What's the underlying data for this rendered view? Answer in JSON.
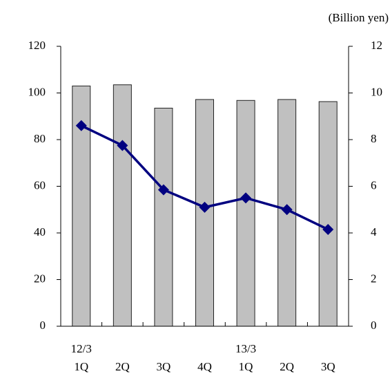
{
  "chart_data": {
    "type": "bar-line",
    "y2_label": "(Billion yen)",
    "categories": [
      "1Q",
      "2Q",
      "3Q",
      "4Q",
      "1Q",
      "2Q",
      "3Q"
    ],
    "category_groups": [
      "12/3",
      null,
      null,
      null,
      "13/3",
      null,
      null
    ],
    "series": [
      {
        "type": "bar",
        "color": "#c0c0c0",
        "values": [
          103,
          103.5,
          93.5,
          97.2,
          96.8,
          97.2,
          96.3
        ]
      },
      {
        "type": "line",
        "axis": "y2",
        "color": "#000080",
        "values": [
          8.6,
          7.75,
          5.85,
          5.1,
          5.5,
          5.0,
          4.15
        ]
      }
    ],
    "ylim": [
      0,
      120
    ],
    "yticks": [
      0,
      20,
      40,
      60,
      80,
      100,
      120
    ],
    "y2lim": [
      0,
      12
    ],
    "y2ticks": [
      0,
      2,
      4,
      6,
      8,
      10,
      12
    ]
  }
}
